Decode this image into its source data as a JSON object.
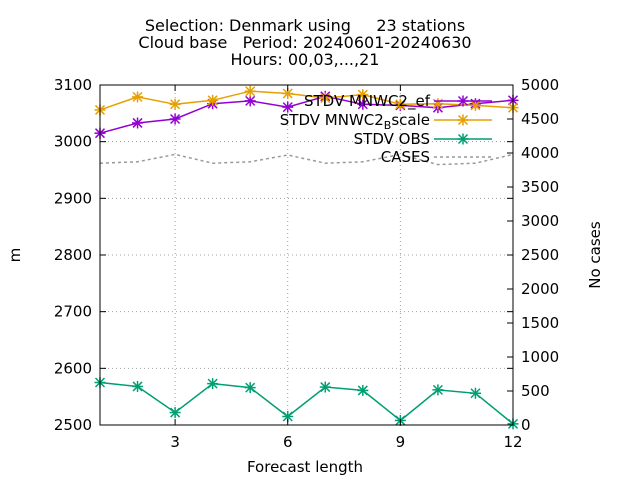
{
  "title_lines": [
    "Selection: Denmark using     23 stations",
    "Cloud base   Period: 20240601-20240630",
    "Hours: 00,03,...,21"
  ],
  "chart_data": {
    "type": "line",
    "xlabel": "Forecast length",
    "ylabel": "m",
    "y2label": "No cases",
    "xlim": [
      1,
      12
    ],
    "ylim": [
      2500,
      3100
    ],
    "y2lim": [
      0,
      5000
    ],
    "xticks": [
      3,
      6,
      9,
      12
    ],
    "yticks": [
      2500,
      2600,
      2700,
      2800,
      2900,
      3000,
      3100
    ],
    "y2ticks": [
      0,
      500,
      1000,
      1500,
      2000,
      2500,
      3000,
      3500,
      4000,
      4500,
      5000
    ],
    "x": [
      1,
      2,
      3,
      4,
      5,
      6,
      7,
      8,
      9,
      10,
      11,
      12
    ],
    "grid": true,
    "legend_position": "top-right",
    "series": [
      {
        "name": "STDV MNWC2_ef",
        "axis": "y",
        "color": "#9400d3",
        "style": "solid",
        "marker": "cross",
        "values": [
          3015,
          3033,
          3040,
          3067,
          3072,
          3061,
          3080,
          3066,
          3064,
          3060,
          3067,
          3073
        ]
      },
      {
        "name_main": "STDV MNWC2",
        "name_sub": "B",
        "name_tail": "scale",
        "axis": "y",
        "color": "#e69f00",
        "style": "solid",
        "marker": "cross",
        "values": [
          3056,
          3079,
          3066,
          3073,
          3089,
          3085,
          3077,
          3083,
          3066,
          3067,
          3064,
          3060
        ]
      },
      {
        "name": "STDV OBS",
        "axis": "y",
        "color": "#009e73",
        "style": "solid",
        "marker": "cross",
        "values": [
          2575,
          2568,
          2522,
          2573,
          2566,
          2515,
          2567,
          2561,
          2508,
          2562,
          2556,
          2502
        ]
      },
      {
        "name": "CASES",
        "axis": "y2",
        "color": "#999999",
        "style": "dashed",
        "marker": "none",
        "values": [
          3850,
          3870,
          3980,
          3850,
          3870,
          3970,
          3850,
          3870,
          3980,
          3830,
          3850,
          3980
        ]
      }
    ]
  }
}
